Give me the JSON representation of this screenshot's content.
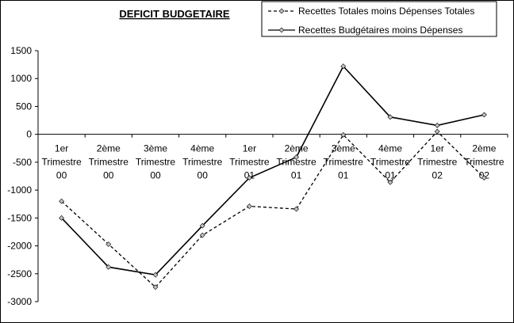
{
  "chart_data": {
    "type": "line",
    "title": "DEFICIT BUDGETAIRE",
    "xlabel": "",
    "ylabel": "",
    "ylim": [
      -3000,
      1500
    ],
    "yticks": [
      1500,
      1000,
      500,
      0,
      -500,
      -1000,
      -1500,
      -2000,
      -2500,
      -3000
    ],
    "grid": false,
    "legend_position": "top-right",
    "categories": [
      [
        "1er",
        "Trimestre",
        "00"
      ],
      [
        "2ème",
        "Trimestre",
        "00"
      ],
      [
        "3ème",
        "Trimestre",
        "00"
      ],
      [
        "4ème",
        "Trimestre",
        "00"
      ],
      [
        "1er",
        "Trimestre",
        "01"
      ],
      [
        "2ème",
        "Trimestre",
        "01"
      ],
      [
        "3ème",
        "Trimestre",
        "01"
      ],
      [
        "4ème",
        "Trimestre",
        "01"
      ],
      [
        "1er",
        "Trimestre",
        "02"
      ],
      [
        "2ème",
        "Trimestre",
        "02"
      ]
    ],
    "series": [
      {
        "name": "Recettes Totales moins Dépenses Totales",
        "style": "dashed",
        "color": "#000000",
        "values": [
          -1200,
          -1970,
          -2740,
          -1810,
          -1290,
          -1340,
          -10,
          -860,
          50,
          -780
        ]
      },
      {
        "name": "Recettes Budgétaires moins Dépenses",
        "style": "solid",
        "color": "#000000",
        "values": [
          -1500,
          -2380,
          -2520,
          -1640,
          -780,
          -410,
          1220,
          310,
          160,
          350
        ]
      }
    ]
  }
}
